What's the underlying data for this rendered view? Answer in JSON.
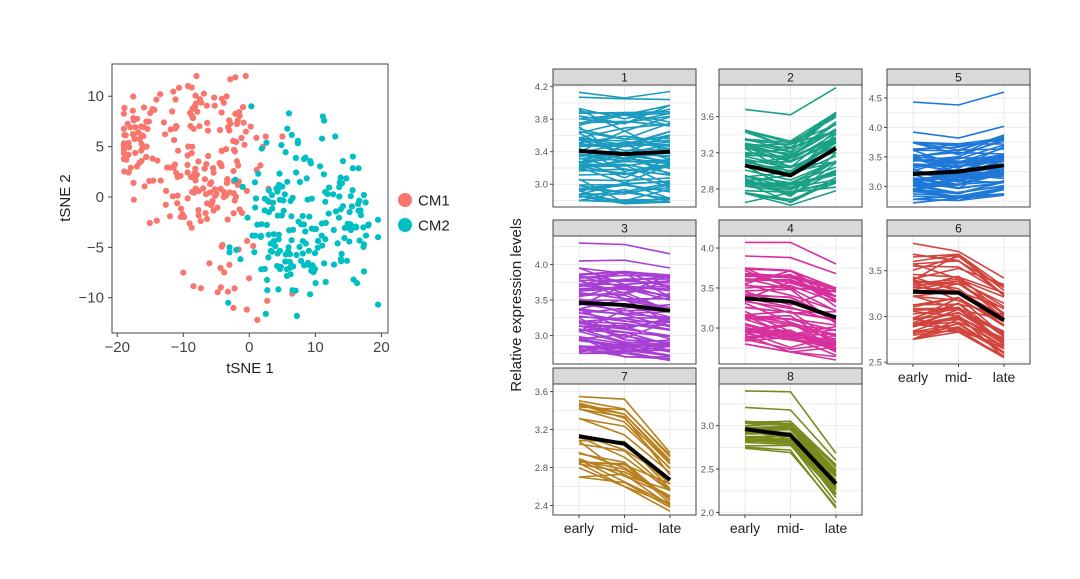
{
  "chart_data": [
    {
      "type": "scatter",
      "title": "",
      "xlabel": "tSNE 1",
      "ylabel": "tSNE 2",
      "xlim": [
        -20.8,
        21
      ],
      "ylim": [
        -13.5,
        13.2
      ],
      "xticks": [
        -20,
        -10,
        0,
        10,
        20
      ],
      "xtick_labels": [
        "−20",
        "−10",
        "0",
        "10",
        "20"
      ],
      "yticks": [
        -10,
        -5,
        0,
        5,
        10
      ],
      "ytick_labels": [
        "−10",
        "−5",
        "0",
        "5",
        "10"
      ],
      "grid": false,
      "legend": {
        "placement": "right",
        "entries": [
          {
            "label": "CM1",
            "color": "#F8766D"
          },
          {
            "label": "CM2",
            "color": "#00BFC4"
          }
        ]
      },
      "point_generation_note": "Point clouds are deterministic approximations of the cluster shapes, not transcribed coordinates.",
      "series": [
        {
          "name": "CM1",
          "color": "#F8766D",
          "clusters": [
            {
              "cx": -17,
              "cy": 5.5,
              "sx": 1.6,
              "sy": 2.2,
              "n": 55
            },
            {
              "cx": -9,
              "cy": 1,
              "sx": 3.2,
              "sy": 2.4,
              "n": 80
            },
            {
              "cx": -8,
              "cy": 9,
              "sx": 3.5,
              "sy": 1.8,
              "n": 35
            },
            {
              "cx": -2,
              "cy": 6,
              "sx": 1.8,
              "sy": 2.6,
              "n": 35
            },
            {
              "cx": -4,
              "cy": -7,
              "sx": 2.2,
              "sy": 2.6,
              "n": 18
            },
            {
              "cx": -2,
              "cy": 0,
              "sx": 1.8,
              "sy": 1.8,
              "n": 15
            }
          ],
          "points": [
            [
              -13.5,
              10.2
            ],
            [
              -8,
              12
            ],
            [
              -10,
              -7.5
            ],
            [
              1.2,
              -12.2
            ],
            [
              2.5,
              6
            ],
            [
              5,
              6
            ],
            [
              6.5,
              -9.6
            ],
            [
              2.7,
              -10.3
            ]
          ]
        },
        {
          "name": "CM2",
          "color": "#00BFC4",
          "clusters": [
            {
              "cx": 8,
              "cy": 1,
              "sx": 3.5,
              "sy": 3,
              "n": 60
            },
            {
              "cx": 15,
              "cy": -3,
              "sx": 2.5,
              "sy": 3,
              "n": 60
            },
            {
              "cx": 6,
              "cy": -6,
              "sx": 3.5,
              "sy": 2.2,
              "n": 55
            },
            {
              "cx": 2,
              "cy": -3,
              "sx": 1.5,
              "sy": 2.5,
              "n": 20
            }
          ],
          "points": [
            [
              0.3,
              9
            ],
            [
              6,
              8.3
            ],
            [
              13,
              6
            ],
            [
              11,
              5.8
            ],
            [
              -3.2,
              -10.5
            ],
            [
              -3,
              -5.5
            ],
            [
              2.5,
              -11.6
            ],
            [
              7.2,
              -11.8
            ],
            [
              7,
              -9.3
            ],
            [
              -3,
              -5
            ],
            [
              -1,
              1
            ]
          ]
        }
      ]
    },
    {
      "type": "line",
      "subtype": "faceted_parallel_lines",
      "title": "",
      "ylabel": "Relative expression levels",
      "categories": [
        "early",
        "mid-",
        "late"
      ],
      "grid": true,
      "mean_line_color": "#000000",
      "lines_generation_note": "Individual gene lines are deterministic approximations matching each panel's readable spread; mean lines read from the figure.",
      "facets": [
        {
          "label": "1",
          "color": "#1A9BBF",
          "ylim": [
            2.72,
            4.22
          ],
          "yticks": [
            3.0,
            3.4,
            3.8,
            4.2
          ],
          "ytick_labels": [
            "3.0",
            "3.4",
            "3.8",
            "4.2"
          ],
          "mean": [
            3.41,
            3.37,
            3.4
          ],
          "spread_low": [
            2.8,
            2.76,
            2.78
          ],
          "spread_high": [
            3.96,
            3.95,
            3.97
          ],
          "extra_lines": [
            [
              4.13,
              4.06,
              4.14
            ],
            [
              4.07,
              4.05,
              4.04
            ]
          ],
          "n_lines": 70,
          "show_x_labels": false
        },
        {
          "label": "2",
          "color": "#1AA085",
          "ylim": [
            2.6,
            3.95
          ],
          "yticks": [
            2.8,
            3.2,
            3.6
          ],
          "ytick_labels": [
            "2.8",
            "3.2",
            "3.6"
          ],
          "mean": [
            3.06,
            2.95,
            3.25
          ],
          "spread_low": [
            2.75,
            2.65,
            2.85
          ],
          "spread_high": [
            3.45,
            3.35,
            3.65
          ],
          "extra_lines": [
            [
              3.68,
              3.62,
              3.92
            ],
            [
              2.65,
              2.76,
              2.82
            ],
            [
              2.75,
              2.62,
              2.78
            ]
          ],
          "n_lines": 50,
          "show_x_labels": false
        },
        {
          "label": "5",
          "color": "#1F78D8",
          "ylim": [
            2.65,
            4.72
          ],
          "yticks": [
            3.0,
            3.5,
            4.0,
            4.5
          ],
          "ytick_labels": [
            "3.0",
            "3.5",
            "4.0",
            "4.5"
          ],
          "mean": [
            3.21,
            3.25,
            3.36
          ],
          "spread_low": [
            2.78,
            2.76,
            2.85
          ],
          "spread_high": [
            3.75,
            3.72,
            3.9
          ],
          "extra_lines": [
            [
              4.43,
              4.38,
              4.6
            ],
            [
              3.92,
              3.82,
              4.02
            ],
            [
              2.72,
              2.8,
              2.86
            ]
          ],
          "n_lines": 65,
          "show_x_labels": false
        },
        {
          "label": "3",
          "color": "#A73FD4",
          "ylim": [
            2.6,
            4.4
          ],
          "yticks": [
            3.0,
            3.5,
            4.0
          ],
          "ytick_labels": [
            "3.0",
            "3.5",
            "4.0"
          ],
          "mean": [
            3.46,
            3.43,
            3.35
          ],
          "spread_low": [
            2.75,
            2.7,
            2.65
          ],
          "spread_high": [
            3.95,
            3.9,
            3.85
          ],
          "extra_lines": [
            [
              4.3,
              4.28,
              4.15
            ],
            [
              4.05,
              4.06,
              3.95
            ],
            [
              2.95,
              2.85,
              2.8
            ]
          ],
          "n_lines": 70,
          "show_x_labels": false
        },
        {
          "label": "4",
          "color": "#D6309C",
          "ylim": [
            2.55,
            4.15
          ],
          "yticks": [
            3.0,
            3.5,
            4.0
          ],
          "ytick_labels": [
            "3.0",
            "3.5",
            "4.0"
          ],
          "mean": [
            3.37,
            3.33,
            3.13
          ],
          "spread_low": [
            2.8,
            2.7,
            2.6
          ],
          "spread_high": [
            3.75,
            3.72,
            3.5
          ],
          "extra_lines": [
            [
              4.07,
              4.07,
              3.8
            ],
            [
              3.9,
              3.88,
              3.68
            ]
          ],
          "n_lines": 60,
          "show_x_labels": false
        },
        {
          "label": "6",
          "color": "#D1453D",
          "ylim": [
            2.48,
            3.88
          ],
          "yticks": [
            2.5,
            3.0,
            3.5
          ],
          "ytick_labels": [
            "2.5",
            "3.0",
            "3.5"
          ],
          "mean": [
            3.27,
            3.26,
            2.96
          ],
          "spread_low": [
            2.75,
            2.83,
            2.55
          ],
          "spread_high": [
            3.68,
            3.68,
            3.4
          ],
          "extra_lines": [
            [
              3.8,
              3.71,
              3.42
            ]
          ],
          "n_lines": 55,
          "show_x_labels": true
        },
        {
          "label": "7",
          "color": "#B8801C",
          "ylim": [
            2.3,
            3.68
          ],
          "yticks": [
            2.4,
            2.8,
            3.2,
            3.6
          ],
          "ytick_labels": [
            "2.4",
            "2.8",
            "3.2",
            "3.6"
          ],
          "mean": [
            3.13,
            3.05,
            2.67
          ],
          "spread_low": [
            2.7,
            2.6,
            2.34
          ],
          "spread_high": [
            3.6,
            3.52,
            2.97
          ],
          "extra_lines": [],
          "n_lines": 28,
          "show_x_labels": true
        },
        {
          "label": "8",
          "color": "#7A8A1E",
          "ylim": [
            1.97,
            3.48
          ],
          "yticks": [
            2.0,
            2.5,
            3.0
          ],
          "ytick_labels": [
            "2.0",
            "2.5",
            "3.0"
          ],
          "mean": [
            2.96,
            2.89,
            2.33
          ],
          "spread_low": [
            2.7,
            2.68,
            2.05
          ],
          "spread_high": [
            3.05,
            3.05,
            2.55
          ],
          "extra_lines": [
            [
              3.4,
              3.39,
              2.68
            ],
            [
              3.21,
              3.18,
              2.6
            ]
          ],
          "n_lines": 35,
          "show_x_labels": true
        }
      ]
    }
  ]
}
